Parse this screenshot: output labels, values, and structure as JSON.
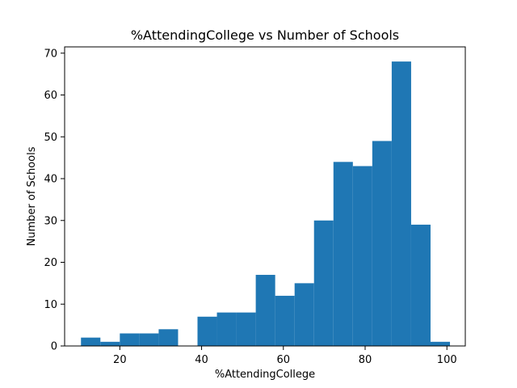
{
  "chart_data": {
    "type": "bar",
    "subtype": "histogram",
    "title": "%AttendingCollege vs Number of Schools",
    "xlabel": "%AttendingCollege",
    "ylabel": "Number of Schools",
    "xlim": [
      6.5,
      104.5
    ],
    "ylim": [
      0,
      71.5
    ],
    "xticks": [
      20,
      40,
      60,
      80,
      100
    ],
    "yticks": [
      0,
      10,
      20,
      30,
      40,
      50,
      60,
      70
    ],
    "bar_color": "#1f77b4",
    "bins": {
      "start": 10.5,
      "width": 4.75,
      "counts": [
        2,
        1,
        3,
        3,
        4,
        0,
        7,
        8,
        8,
        17,
        12,
        15,
        30,
        44,
        43,
        49,
        68,
        29,
        1
      ]
    },
    "grid": false,
    "legend": "none"
  }
}
